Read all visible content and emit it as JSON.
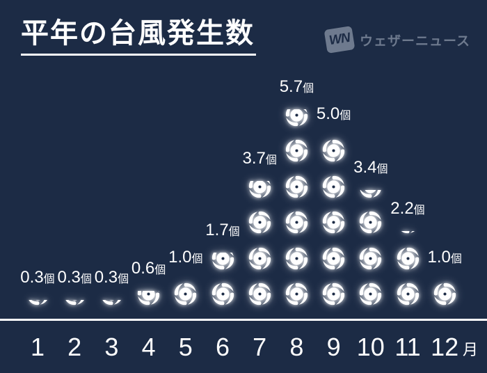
{
  "header": {
    "title": "平年の台風発生数",
    "brand": {
      "mark": "WN",
      "name": "ウェザーニュース"
    }
  },
  "chart_data": {
    "type": "bar",
    "subtype": "pictogram-stack",
    "title": "平年の台風発生数",
    "icon": "typhoon-icon",
    "icon_meaning": "1 icon = 1 typhoon",
    "unit_label": "個",
    "x_axis_unit": "月",
    "categories": [
      "1",
      "2",
      "3",
      "4",
      "5",
      "6",
      "7",
      "8",
      "9",
      "10",
      "11",
      "12"
    ],
    "values": [
      0.3,
      0.3,
      0.3,
      0.6,
      1.0,
      1.7,
      3.7,
      5.7,
      5.0,
      3.4,
      2.2,
      1.0
    ],
    "value_labels": [
      "0.3個",
      "0.3個",
      "0.3個",
      "0.6個",
      "1.0個",
      "1.7個",
      "3.7個",
      "5.7個",
      "5.0個",
      "3.4個",
      "2.2個",
      "1.0個"
    ],
    "ylim": [
      0,
      6
    ],
    "grid": false,
    "legend": false,
    "colors": {
      "background": "#1c2b45",
      "icon": "#ffffff",
      "text": "#ffffff",
      "brand": "#6e7a8e"
    }
  }
}
